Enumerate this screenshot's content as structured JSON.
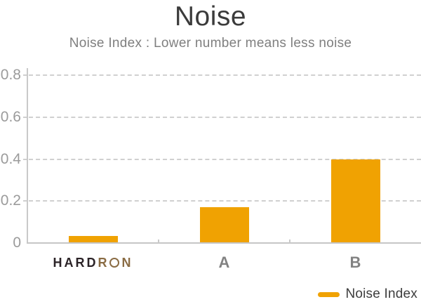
{
  "chart_data": {
    "type": "bar",
    "title": "Noise",
    "subtitle": "Noise Index : Lower number means less noise",
    "categories": [
      "HARDRON",
      "A",
      "B"
    ],
    "series": [
      {
        "name": "Noise Index",
        "values": [
          0.035,
          0.17,
          0.4
        ]
      }
    ],
    "ylim": [
      0,
      0.8
    ],
    "yticks": [
      0,
      0.2,
      0.4,
      0.6,
      0.8
    ],
    "ytick_labels": [
      "0",
      "0.2",
      "0.4",
      "0.6",
      "0.8"
    ],
    "grid": {
      "horizontal": true,
      "style": "dashed"
    },
    "legend": {
      "label": "Noise Index",
      "position": "bottom-right"
    },
    "colors": {
      "bar": "#F0A202",
      "grid": "#D0D0D0",
      "axis": "#C8C8C8",
      "ytick_text": "#9B9B9B",
      "xtick_text": "#828282",
      "title_text": "#3B3B3B",
      "subtitle_text": "#7F7F7F",
      "legend_text": "#3D3D3D"
    },
    "brand": {
      "name": "HARDRON",
      "dark_letters": "HARD",
      "bronze_letter_r": "R",
      "ring_letter": "O",
      "bronze_letter_n": "N",
      "dark_color": "#2B2327",
      "bronze_color": "#8A6C44"
    }
  }
}
